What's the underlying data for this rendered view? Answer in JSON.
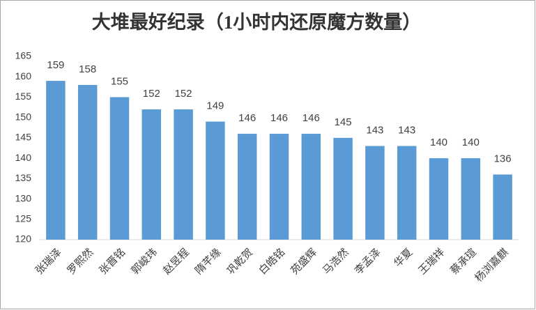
{
  "chart_data": {
    "type": "bar",
    "title": "大堆最好纪录（1小时内还原魔方数量）",
    "categories": [
      "张瑞泽",
      "罗熙然",
      "张晋铭",
      "郭峻玮",
      "赵昱程",
      "隋芊缘",
      "巩乾贺",
      "白皓铭",
      "苑盛辉",
      "马浩然",
      "李孟泽",
      "华夏",
      "王瑞祥",
      "蔡承瑄",
      "杨浏嘉麒"
    ],
    "values": [
      159,
      158,
      155,
      152,
      152,
      149,
      146,
      146,
      146,
      145,
      143,
      143,
      140,
      140,
      136
    ],
    "color": "#5b9bd5",
    "ylim": [
      120,
      165
    ],
    "yticks": [
      120,
      125,
      130,
      135,
      140,
      145,
      150,
      155,
      160,
      165
    ],
    "grid": false
  }
}
